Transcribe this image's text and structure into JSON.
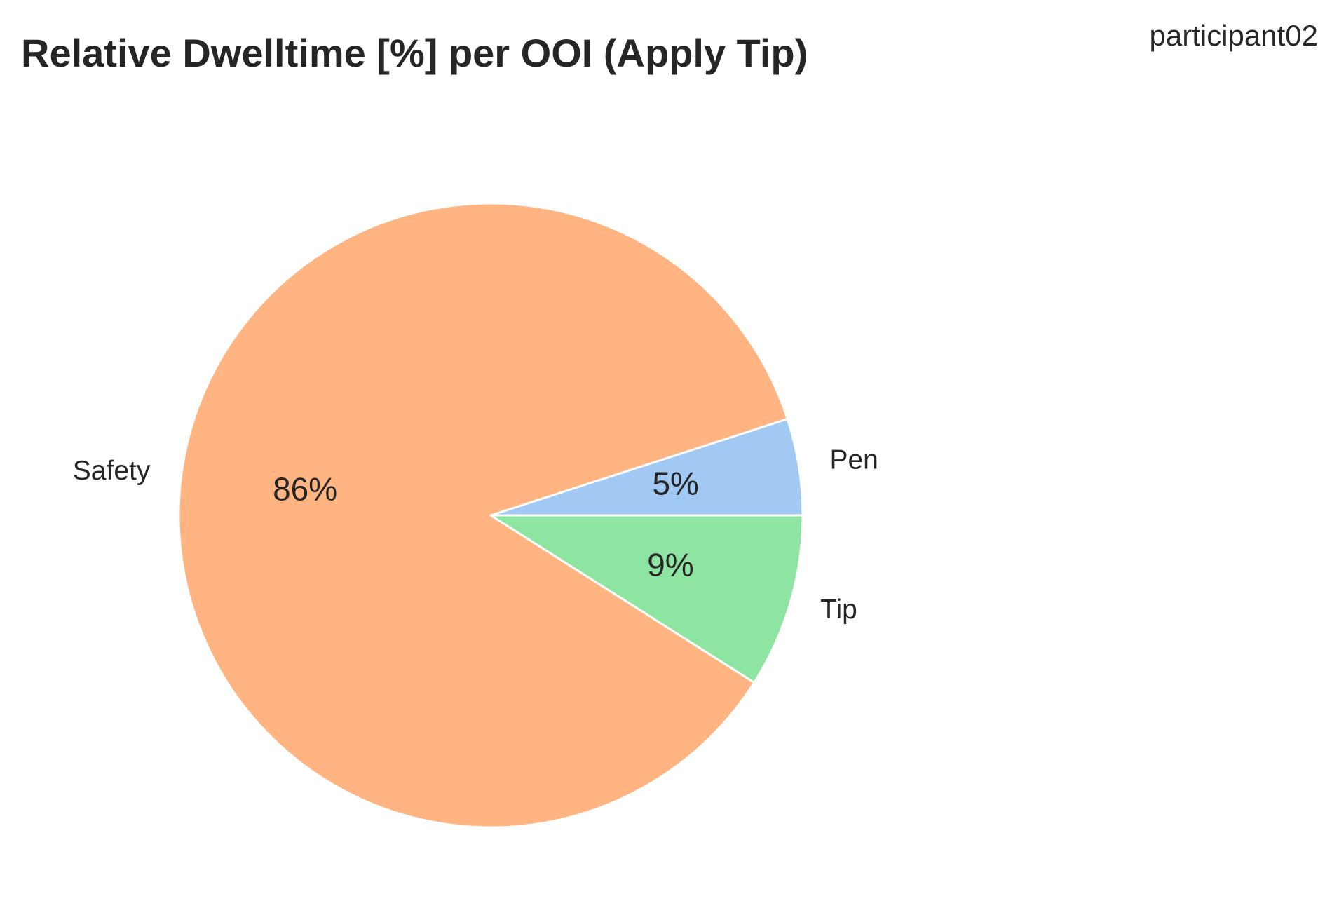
{
  "chart_data": {
    "type": "pie",
    "title": "Relative Dwelltime [%] per OOI (Apply Tip)",
    "subtitle": "participant02",
    "start_angle_deg": 0,
    "direction": "counterclockwise",
    "slice_border_color": "#ffffff",
    "slices": [
      {
        "label": "Pen",
        "value": 5,
        "pct_label": "5%",
        "color": "#a1c9f4"
      },
      {
        "label": "Safety",
        "value": 86,
        "pct_label": "86%",
        "color": "#ffb482"
      },
      {
        "label": "Tip",
        "value": 9,
        "pct_label": "9%",
        "color": "#8de5a1"
      }
    ]
  }
}
